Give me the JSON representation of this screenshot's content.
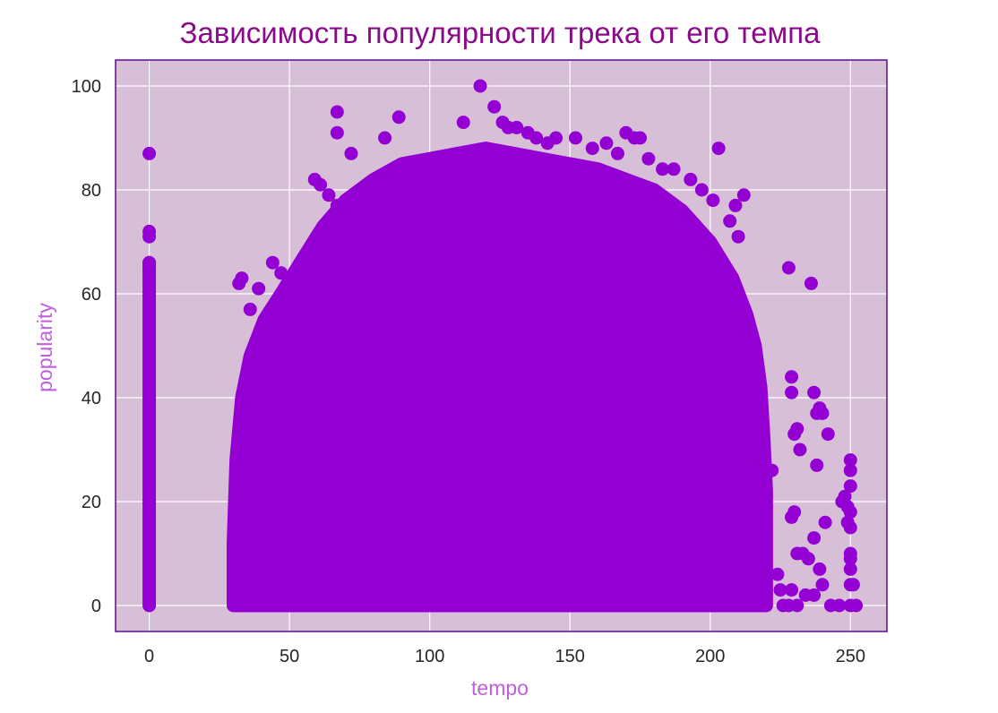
{
  "colors": {
    "title": "#8b0a8b",
    "axis_label": "#c060dc",
    "plot_bg": "#d8bfd8",
    "frame": "#5a0d8a",
    "grid": "#ffffff",
    "marker": "#9400d3",
    "tick_text": "#262626"
  },
  "chart_data": {
    "type": "scatter",
    "title": "Зависимость популярности трека от его темпа",
    "xlabel": "tempo",
    "ylabel": "popularity",
    "xlim": [
      -12,
      263
    ],
    "ylim": [
      -5,
      105
    ],
    "xticks": [
      0,
      50,
      100,
      150,
      200,
      250
    ],
    "yticks": [
      0,
      20,
      40,
      60,
      80,
      100
    ],
    "xtick_labels": [
      "0",
      "50",
      "100",
      "150",
      "200",
      "250"
    ],
    "ytick_labels": [
      "0",
      "20",
      "40",
      "60",
      "80",
      "100"
    ],
    "grid": true,
    "dense_region": {
      "description_points": [
        [
          30,
          0
        ],
        [
          30,
          12
        ],
        [
          31,
          28
        ],
        [
          33,
          40
        ],
        [
          36,
          48
        ],
        [
          41,
          55
        ],
        [
          47,
          60
        ],
        [
          55,
          67
        ],
        [
          62,
          73
        ],
        [
          70,
          78
        ],
        [
          80,
          82
        ],
        [
          90,
          85
        ],
        [
          100,
          86
        ],
        [
          110,
          87
        ],
        [
          120,
          88
        ],
        [
          130,
          87
        ],
        [
          140,
          86
        ],
        [
          150,
          85
        ],
        [
          160,
          84
        ],
        [
          170,
          82
        ],
        [
          180,
          80
        ],
        [
          190,
          76
        ],
        [
          200,
          70
        ],
        [
          208,
          63
        ],
        [
          213,
          56
        ],
        [
          216,
          50
        ],
        [
          218,
          42
        ],
        [
          219,
          33
        ],
        [
          220,
          22
        ],
        [
          220,
          0
        ]
      ]
    },
    "tempo_zero_column": {
      "x": 0,
      "y_range": [
        0,
        66
      ]
    },
    "outliers": [
      [
        0,
        87
      ],
      [
        0,
        72
      ],
      [
        0,
        71
      ],
      [
        0,
        66
      ],
      [
        0,
        65
      ],
      [
        67,
        95
      ],
      [
        67,
        91
      ],
      [
        72,
        87
      ],
      [
        89,
        94
      ],
      [
        84,
        90
      ],
      [
        112,
        93
      ],
      [
        118,
        100
      ],
      [
        123,
        96
      ],
      [
        126,
        93
      ],
      [
        128,
        92
      ],
      [
        131,
        92
      ],
      [
        135,
        91
      ],
      [
        138,
        90
      ],
      [
        142,
        89
      ],
      [
        145,
        90
      ],
      [
        152,
        90
      ],
      [
        158,
        88
      ],
      [
        163,
        89
      ],
      [
        167,
        87
      ],
      [
        170,
        91
      ],
      [
        173,
        90
      ],
      [
        175,
        90
      ],
      [
        178,
        86
      ],
      [
        183,
        84
      ],
      [
        187,
        84
      ],
      [
        193,
        82
      ],
      [
        197,
        80
      ],
      [
        203,
        88
      ],
      [
        201,
        78
      ],
      [
        209,
        77
      ],
      [
        212,
        79
      ],
      [
        207,
        74
      ],
      [
        210,
        71
      ],
      [
        32,
        62
      ],
      [
        33,
        63
      ],
      [
        36,
        57
      ],
      [
        39,
        61
      ],
      [
        44,
        66
      ],
      [
        47,
        64
      ],
      [
        59,
        82
      ],
      [
        61,
        81
      ],
      [
        64,
        79
      ],
      [
        67,
        77
      ],
      [
        222,
        26
      ],
      [
        224,
        6
      ],
      [
        225,
        3
      ],
      [
        226,
        0
      ],
      [
        228,
        0
      ],
      [
        228,
        65
      ],
      [
        236,
        62
      ],
      [
        229,
        44
      ],
      [
        229,
        41
      ],
      [
        230,
        33
      ],
      [
        231,
        34
      ],
      [
        232,
        30
      ],
      [
        230,
        18
      ],
      [
        229,
        17
      ],
      [
        231,
        10
      ],
      [
        233,
        10
      ],
      [
        235,
        9
      ],
      [
        234,
        2
      ],
      [
        237,
        2
      ],
      [
        229,
        3
      ],
      [
        231,
        0
      ],
      [
        237,
        41
      ],
      [
        238,
        37
      ],
      [
        240,
        37
      ],
      [
        239,
        38
      ],
      [
        238,
        27
      ],
      [
        237,
        13
      ],
      [
        241,
        16
      ],
      [
        239,
        7
      ],
      [
        240,
        4
      ],
      [
        242,
        33
      ],
      [
        243,
        0
      ],
      [
        246,
        0
      ],
      [
        247,
        20
      ],
      [
        248,
        21
      ],
      [
        249,
        19
      ],
      [
        249,
        16
      ],
      [
        250,
        28
      ],
      [
        250,
        26
      ],
      [
        250,
        23
      ],
      [
        250,
        18
      ],
      [
        250,
        15
      ],
      [
        250,
        10
      ],
      [
        250,
        9
      ],
      [
        250,
        7
      ],
      [
        250,
        4
      ],
      [
        251,
        4
      ],
      [
        250,
        0
      ],
      [
        252,
        0
      ]
    ]
  }
}
